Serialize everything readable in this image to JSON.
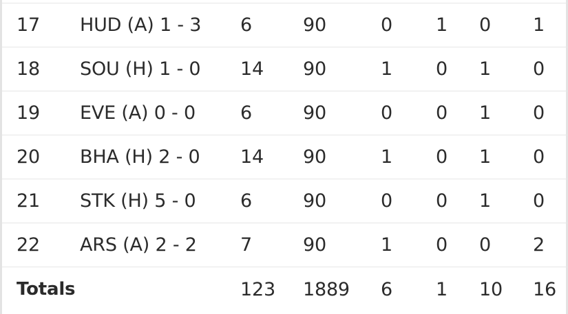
{
  "rows": [
    {
      "gw": "17",
      "opponent": "HUD (A) 1 - 3",
      "pts": "6",
      "mins": "90",
      "goals": "0",
      "assists": "1",
      "cs": "0",
      "bonus": "1"
    },
    {
      "gw": "18",
      "opponent": "SOU (H) 1 - 0",
      "pts": "14",
      "mins": "90",
      "goals": "1",
      "assists": "0",
      "cs": "1",
      "bonus": "0"
    },
    {
      "gw": "19",
      "opponent": "EVE (A) 0 - 0",
      "pts": "6",
      "mins": "90",
      "goals": "0",
      "assists": "0",
      "cs": "1",
      "bonus": "0"
    },
    {
      "gw": "20",
      "opponent": "BHA (H) 2 - 0",
      "pts": "14",
      "mins": "90",
      "goals": "1",
      "assists": "0",
      "cs": "1",
      "bonus": "0"
    },
    {
      "gw": "21",
      "opponent": "STK (H) 5 - 0",
      "pts": "6",
      "mins": "90",
      "goals": "0",
      "assists": "0",
      "cs": "1",
      "bonus": "0"
    },
    {
      "gw": "22",
      "opponent": "ARS (A) 2 - 2",
      "pts": "7",
      "mins": "90",
      "goals": "1",
      "assists": "0",
      "cs": "0",
      "bonus": "2"
    }
  ],
  "totals": {
    "label": "Totals",
    "pts": "123",
    "mins": "1889",
    "goals": "6",
    "assists": "1",
    "cs": "10",
    "bonus": "16"
  }
}
